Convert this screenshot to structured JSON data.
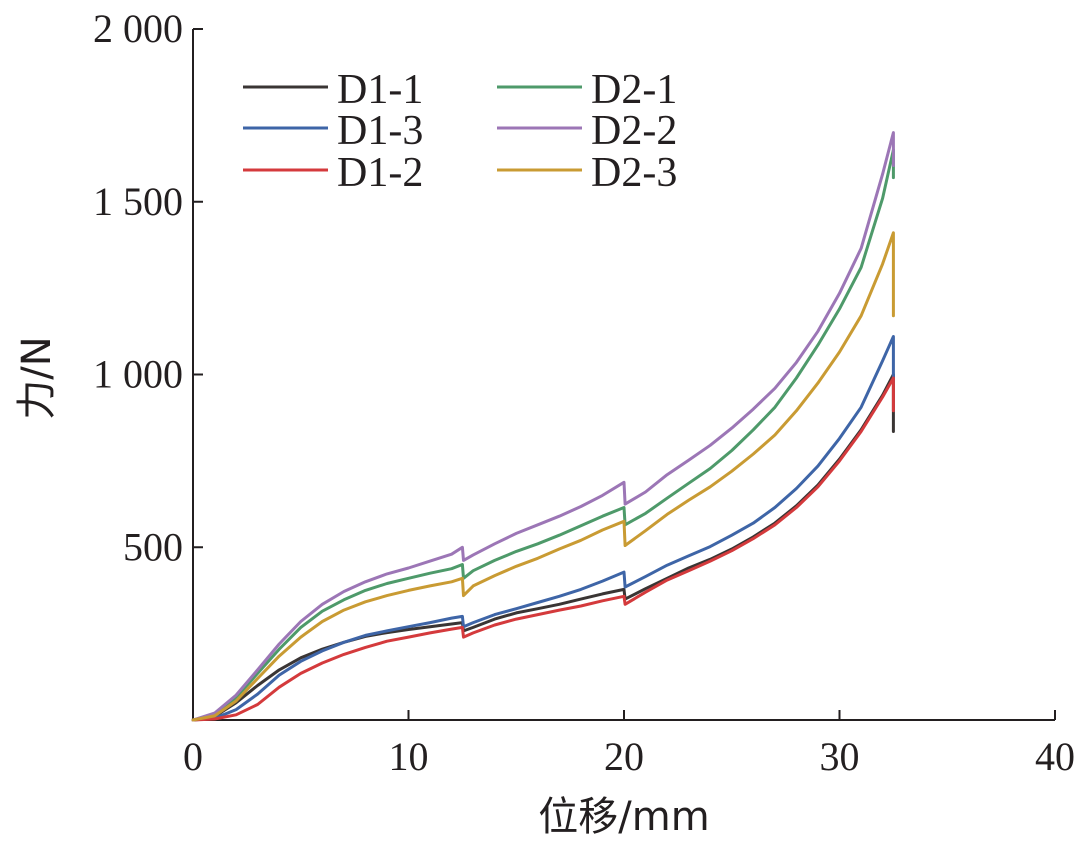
{
  "chart_data": {
    "type": "line",
    "title": "",
    "xlabel": "位移/mm",
    "ylabel": "力/N",
    "xlim": [
      0,
      40
    ],
    "ylim": [
      0,
      2000
    ],
    "xticks": [
      0,
      10,
      20,
      30,
      40
    ],
    "xtick_labels": [
      "0",
      "10",
      "20",
      "30",
      "40"
    ],
    "yticks": [
      500,
      1000,
      1500,
      2000
    ],
    "ytick_labels": [
      "500",
      "1 000",
      "1 500",
      "2 000"
    ],
    "grid": false,
    "legend_position": "top-left",
    "legend_columns": 2,
    "series": [
      {
        "name": "D1-1",
        "color": "#3a3534",
        "points": [
          [
            0,
            0
          ],
          [
            1,
            10
          ],
          [
            2,
            50
          ],
          [
            3,
            100
          ],
          [
            4,
            145
          ],
          [
            5,
            180
          ],
          [
            6,
            205
          ],
          [
            7,
            225
          ],
          [
            8,
            242
          ],
          [
            9,
            253
          ],
          [
            10,
            262
          ],
          [
            11,
            270
          ],
          [
            12,
            278
          ],
          [
            12.5,
            282
          ],
          [
            12.55,
            258
          ],
          [
            13,
            268
          ],
          [
            14,
            292
          ],
          [
            15,
            310
          ],
          [
            16,
            322
          ],
          [
            17,
            335
          ],
          [
            18,
            350
          ],
          [
            19,
            365
          ],
          [
            20,
            378
          ],
          [
            20.05,
            350
          ],
          [
            21,
            380
          ],
          [
            22,
            410
          ],
          [
            23,
            440
          ],
          [
            24,
            465
          ],
          [
            25,
            495
          ],
          [
            26,
            530
          ],
          [
            27,
            570
          ],
          [
            28,
            620
          ],
          [
            29,
            680
          ],
          [
            30,
            755
          ],
          [
            31,
            840
          ],
          [
            32,
            940
          ],
          [
            32.5,
            1000
          ],
          [
            32.5,
            835
          ]
        ]
      },
      {
        "name": "D1-3",
        "color": "#3e65a7",
        "points": [
          [
            0,
            0
          ],
          [
            1,
            5
          ],
          [
            2,
            30
          ],
          [
            3,
            75
          ],
          [
            4,
            130
          ],
          [
            5,
            170
          ],
          [
            6,
            200
          ],
          [
            7,
            225
          ],
          [
            8,
            245
          ],
          [
            9,
            258
          ],
          [
            10,
            270
          ],
          [
            11,
            282
          ],
          [
            12,
            295
          ],
          [
            12.5,
            300
          ],
          [
            12.55,
            270
          ],
          [
            13,
            282
          ],
          [
            14,
            305
          ],
          [
            15,
            322
          ],
          [
            16,
            340
          ],
          [
            17,
            358
          ],
          [
            18,
            378
          ],
          [
            19,
            402
          ],
          [
            20,
            428
          ],
          [
            20.05,
            385
          ],
          [
            21,
            415
          ],
          [
            22,
            448
          ],
          [
            23,
            475
          ],
          [
            24,
            502
          ],
          [
            25,
            535
          ],
          [
            26,
            570
          ],
          [
            27,
            615
          ],
          [
            28,
            670
          ],
          [
            29,
            735
          ],
          [
            30,
            815
          ],
          [
            31,
            905
          ],
          [
            32,
            1040
          ],
          [
            32.5,
            1110
          ],
          [
            32.5,
            975
          ]
        ]
      },
      {
        "name": "D1-2",
        "color": "#d43a3c",
        "points": [
          [
            0,
            0
          ],
          [
            1,
            3
          ],
          [
            2,
            15
          ],
          [
            3,
            45
          ],
          [
            4,
            95
          ],
          [
            5,
            135
          ],
          [
            6,
            165
          ],
          [
            7,
            190
          ],
          [
            8,
            210
          ],
          [
            9,
            228
          ],
          [
            10,
            240
          ],
          [
            11,
            252
          ],
          [
            12,
            263
          ],
          [
            12.5,
            268
          ],
          [
            12.55,
            240
          ],
          [
            13,
            252
          ],
          [
            14,
            275
          ],
          [
            15,
            292
          ],
          [
            16,
            305
          ],
          [
            17,
            318
          ],
          [
            18,
            330
          ],
          [
            19,
            345
          ],
          [
            20,
            358
          ],
          [
            20.05,
            335
          ],
          [
            21,
            370
          ],
          [
            22,
            405
          ],
          [
            23,
            432
          ],
          [
            24,
            460
          ],
          [
            25,
            490
          ],
          [
            26,
            525
          ],
          [
            27,
            565
          ],
          [
            28,
            615
          ],
          [
            29,
            675
          ],
          [
            30,
            750
          ],
          [
            31,
            835
          ],
          [
            32,
            935
          ],
          [
            32.5,
            990
          ],
          [
            32.5,
            895
          ]
        ]
      },
      {
        "name": "D2-1",
        "color": "#4e9a6a",
        "points": [
          [
            0,
            0
          ],
          [
            1,
            15
          ],
          [
            2,
            65
          ],
          [
            3,
            135
          ],
          [
            4,
            205
          ],
          [
            5,
            268
          ],
          [
            6,
            315
          ],
          [
            7,
            348
          ],
          [
            8,
            375
          ],
          [
            9,
            395
          ],
          [
            10,
            410
          ],
          [
            11,
            425
          ],
          [
            12,
            438
          ],
          [
            12.5,
            450
          ],
          [
            12.55,
            410
          ],
          [
            13,
            432
          ],
          [
            14,
            462
          ],
          [
            15,
            488
          ],
          [
            16,
            510
          ],
          [
            17,
            535
          ],
          [
            18,
            562
          ],
          [
            19,
            590
          ],
          [
            20,
            615
          ],
          [
            20.05,
            565
          ],
          [
            21,
            598
          ],
          [
            22,
            642
          ],
          [
            23,
            685
          ],
          [
            24,
            728
          ],
          [
            25,
            780
          ],
          [
            26,
            840
          ],
          [
            27,
            905
          ],
          [
            28,
            990
          ],
          [
            29,
            1085
          ],
          [
            30,
            1190
          ],
          [
            31,
            1310
          ],
          [
            32,
            1510
          ],
          [
            32.5,
            1650
          ],
          [
            32.5,
            1570
          ]
        ]
      },
      {
        "name": "D2-2",
        "color": "#9c76b6",
        "points": [
          [
            0,
            0
          ],
          [
            1,
            20
          ],
          [
            2,
            72
          ],
          [
            3,
            145
          ],
          [
            4,
            220
          ],
          [
            5,
            285
          ],
          [
            6,
            335
          ],
          [
            7,
            372
          ],
          [
            8,
            400
          ],
          [
            9,
            423
          ],
          [
            10,
            440
          ],
          [
            11,
            460
          ],
          [
            12,
            480
          ],
          [
            12.5,
            500
          ],
          [
            12.55,
            462
          ],
          [
            13,
            478
          ],
          [
            14,
            510
          ],
          [
            15,
            540
          ],
          [
            16,
            565
          ],
          [
            17,
            590
          ],
          [
            18,
            618
          ],
          [
            19,
            650
          ],
          [
            20,
            688
          ],
          [
            20.05,
            625
          ],
          [
            21,
            660
          ],
          [
            22,
            710
          ],
          [
            23,
            752
          ],
          [
            24,
            795
          ],
          [
            25,
            845
          ],
          [
            26,
            900
          ],
          [
            27,
            960
          ],
          [
            28,
            1035
          ],
          [
            29,
            1125
          ],
          [
            30,
            1235
          ],
          [
            31,
            1365
          ],
          [
            32,
            1580
          ],
          [
            32.5,
            1700
          ],
          [
            32.5,
            1605
          ]
        ]
      },
      {
        "name": "D2-3",
        "color": "#c99b33",
        "points": [
          [
            0,
            0
          ],
          [
            1,
            12
          ],
          [
            2,
            55
          ],
          [
            3,
            120
          ],
          [
            4,
            185
          ],
          [
            5,
            240
          ],
          [
            6,
            285
          ],
          [
            7,
            318
          ],
          [
            8,
            342
          ],
          [
            9,
            360
          ],
          [
            10,
            375
          ],
          [
            11,
            388
          ],
          [
            12,
            400
          ],
          [
            12.5,
            410
          ],
          [
            12.55,
            360
          ],
          [
            13,
            388
          ],
          [
            14,
            418
          ],
          [
            15,
            445
          ],
          [
            16,
            468
          ],
          [
            17,
            495
          ],
          [
            18,
            520
          ],
          [
            19,
            550
          ],
          [
            20,
            575
          ],
          [
            20.05,
            505
          ],
          [
            21,
            548
          ],
          [
            22,
            595
          ],
          [
            23,
            636
          ],
          [
            24,
            675
          ],
          [
            25,
            720
          ],
          [
            26,
            770
          ],
          [
            27,
            825
          ],
          [
            28,
            895
          ],
          [
            29,
            975
          ],
          [
            30,
            1065
          ],
          [
            31,
            1170
          ],
          [
            32,
            1320
          ],
          [
            32.5,
            1410
          ],
          [
            32.5,
            1170
          ]
        ]
      }
    ]
  }
}
